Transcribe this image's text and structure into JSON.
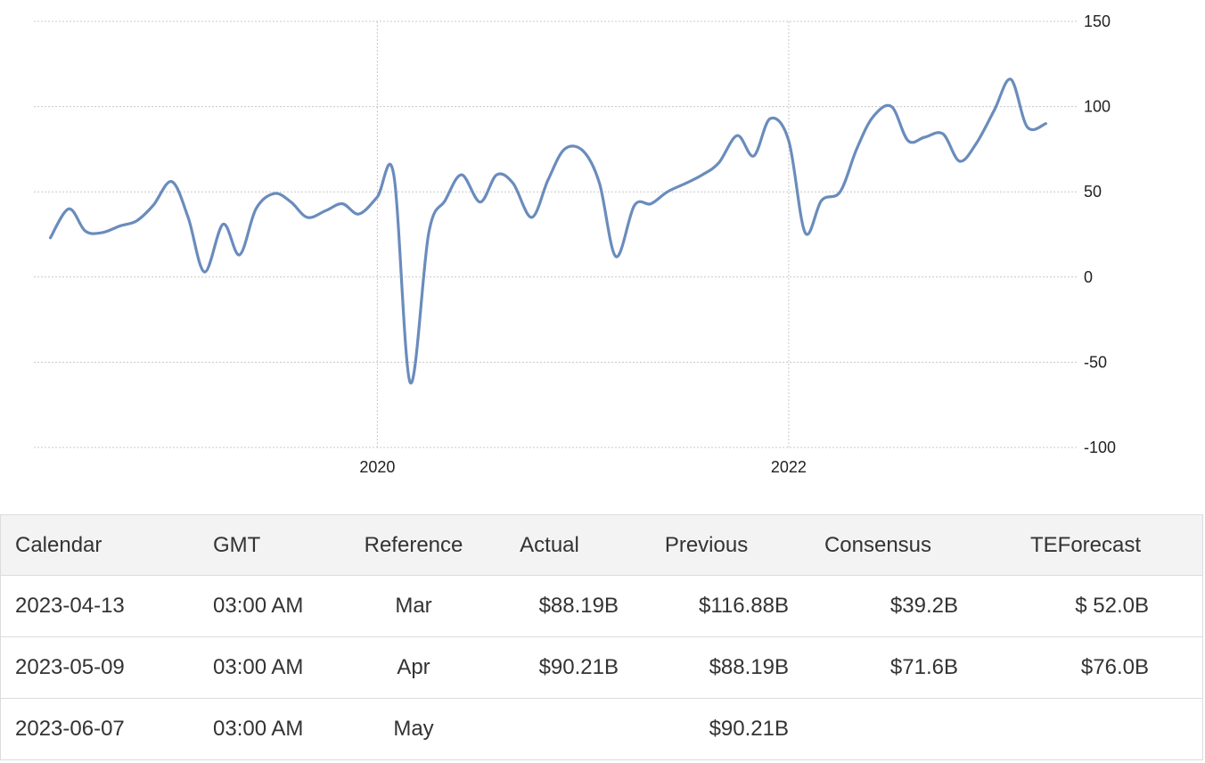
{
  "chart_data": {
    "type": "line",
    "title": "",
    "xlabel": "",
    "ylabel": "",
    "ylim": [
      -100,
      150
    ],
    "yticks": [
      150,
      100,
      50,
      0,
      -50,
      -100
    ],
    "xticks": [
      2020,
      2022
    ],
    "xlim": [
      2018.33,
      2023.4
    ],
    "grid": true,
    "y_axis_side": "right",
    "line_color": "#6a8cbc",
    "series": [
      {
        "x": [
          2018.41,
          2018.5,
          2018.58,
          2018.66,
          2018.75,
          2018.83,
          2018.91,
          2019.0,
          2019.08,
          2019.16,
          2019.25,
          2019.33,
          2019.41,
          2019.5,
          2019.58,
          2019.66,
          2019.75,
          2019.83,
          2019.91,
          2020.0,
          2020.08,
          2020.16,
          2020.25,
          2020.33,
          2020.41,
          2020.5,
          2020.58,
          2020.66,
          2020.75,
          2020.83,
          2020.91,
          2021.0,
          2021.08,
          2021.16,
          2021.25,
          2021.33,
          2021.41,
          2021.5,
          2021.58,
          2021.66,
          2021.75,
          2021.83,
          2021.91,
          2022.0,
          2022.08,
          2022.16,
          2022.25,
          2022.33,
          2022.41,
          2022.5,
          2022.58,
          2022.66,
          2022.75,
          2022.83,
          2022.91,
          2023.0,
          2023.08,
          2023.16,
          2023.25
        ],
        "values": [
          23,
          40,
          27,
          26,
          30,
          33,
          42,
          56,
          35,
          3,
          31,
          13,
          40,
          49,
          44,
          35,
          39,
          43,
          37,
          47,
          60,
          -62,
          26,
          45,
          60,
          44,
          60,
          55,
          35,
          57,
          75,
          74,
          55,
          12,
          42,
          43,
          50,
          55,
          60,
          67,
          83,
          71,
          93,
          80,
          26,
          45,
          50,
          75,
          94,
          100,
          80,
          82,
          84,
          68,
          78,
          98,
          116,
          88,
          90
        ]
      }
    ]
  },
  "table": {
    "headers": {
      "calendar": "Calendar",
      "gmt": "GMT",
      "reference": "Reference",
      "actual": "Actual",
      "previous": "Previous",
      "consensus": "Consensus",
      "teforecast": "TEForecast"
    },
    "rows": [
      {
        "calendar": "2023-04-13",
        "gmt": "03:00 AM",
        "reference": "Mar",
        "actual": "$88.19B",
        "previous": "$116.88B",
        "consensus": "$39.2B",
        "teforecast": "$ 52.0B"
      },
      {
        "calendar": "2023-05-09",
        "gmt": "03:00 AM",
        "reference": "Apr",
        "actual": "$90.21B",
        "previous": "$88.19B",
        "consensus": "$71.6B",
        "teforecast": "$76.0B"
      },
      {
        "calendar": "2023-06-07",
        "gmt": "03:00 AM",
        "reference": "May",
        "actual": "",
        "previous": "$90.21B",
        "consensus": "",
        "teforecast": ""
      }
    ]
  }
}
